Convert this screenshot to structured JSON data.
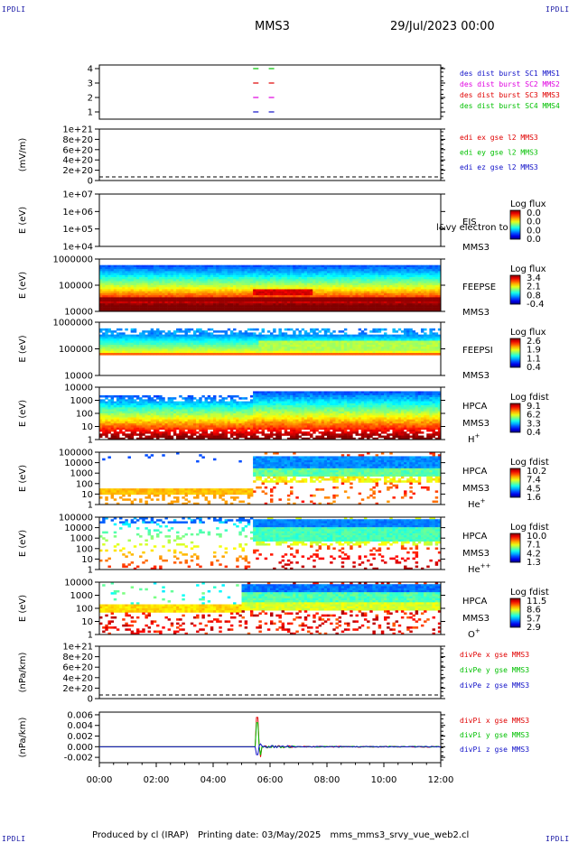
{
  "header": {
    "corner_label": "IPDLI",
    "mission": "MMS3",
    "date": "29/Jul/2023 00:00"
  },
  "footer": {
    "produced_by": "Produced by cl (IRAP)",
    "printing_date": "Printing date: 03/May/2025",
    "filename": "mms_mms3_srvy_vue_web2.cl"
  },
  "colors": {
    "blue": "#1010c8",
    "red": "#e00000",
    "green": "#00c000",
    "magenta": "#e000e0"
  },
  "chart_data": [
    {
      "id": "burst",
      "type": "line",
      "yticks": [
        "4",
        "3",
        "2",
        "1"
      ],
      "ylabel": "",
      "legend": [
        {
          "text": "des dist burst SC1 MMS1",
          "color": "#1010c8"
        },
        {
          "text": "des dist burst SC2 MMS2",
          "color": "#e000e0"
        },
        {
          "text": "des dist burst SC3 MMS3",
          "color": "#e00000"
        },
        {
          "text": "des dist burst SC4 MMS4",
          "color": "#00c000"
        }
      ],
      "bursts": [
        {
          "sc": 4,
          "times": [
            5.5,
            6.05
          ],
          "color": "#00c000"
        },
        {
          "sc": 3,
          "times": [
            5.5,
            6.05
          ],
          "color": "#e00000"
        },
        {
          "sc": 2,
          "times": [
            5.5,
            6.05
          ],
          "color": "#e000e0"
        },
        {
          "sc": 1,
          "times": [
            5.5,
            6.05
          ],
          "color": "#1010c8"
        }
      ]
    },
    {
      "id": "edi",
      "type": "line",
      "yticks": [
        "1e+21",
        "8e+20",
        "6e+20",
        "4e+20",
        "2e+20",
        "0"
      ],
      "ylabel": "(mV/m)",
      "legend": [
        {
          "text": "edi ex gse l2 MMS3",
          "color": "#e00000"
        },
        {
          "text": "edi ey gse l2 MMS3",
          "color": "#00c000"
        },
        {
          "text": "edi ez gse l2 MMS3",
          "color": "#1010c8"
        }
      ]
    },
    {
      "id": "eis",
      "type": "heatmap",
      "yticks": [
        "1e+07",
        "1e+06",
        "1e+05",
        "1e+04"
      ],
      "ylabel": "E (eV)",
      "instrument": [
        "EIS",
        "MMS3"
      ],
      "overlay_text": "l&vy electron to",
      "cbar_title": "Log flux",
      "cbar_ticks": [
        "0.0",
        "0.0",
        "0.0",
        "0.0"
      ]
    },
    {
      "id": "feepse",
      "type": "heatmap",
      "yticks": [
        "1000000",
        "100000",
        "10000"
      ],
      "ylabel": "E (eV)",
      "instrument": [
        "FEEPSE",
        "MMS3"
      ],
      "cbar_title": "Log flux",
      "cbar_ticks": [
        "3.4",
        "2.1",
        "0.8",
        "-0.4"
      ]
    },
    {
      "id": "feepsi",
      "type": "heatmap",
      "yticks": [
        "1000000",
        "100000",
        "10000"
      ],
      "ylabel": "E (eV)",
      "instrument": [
        "FEEPSI",
        "MMS3"
      ],
      "cbar_title": "Log flux",
      "cbar_ticks": [
        "2.6",
        "1.9",
        "1.1",
        "0.4"
      ]
    },
    {
      "id": "hpca_h",
      "type": "heatmap",
      "yticks": [
        "10000",
        "1000",
        "100",
        "10",
        "1"
      ],
      "ylabel": "E (eV)",
      "instrument": [
        "HPCA",
        "MMS3"
      ],
      "species": "H",
      "species_sup": "+",
      "cbar_title": "Log fdist",
      "cbar_ticks": [
        "9.1",
        "6.2",
        "3.3",
        "0.4"
      ]
    },
    {
      "id": "hpca_he",
      "type": "heatmap",
      "yticks": [
        "100000",
        "10000",
        "1000",
        "100",
        "10",
        "1"
      ],
      "ylabel": "E (eV)",
      "instrument": [
        "HPCA",
        "MMS3"
      ],
      "species": "He",
      "species_sup": "+",
      "cbar_title": "Log fdist",
      "cbar_ticks": [
        "10.2",
        "7.4",
        "4.5",
        "1.6"
      ]
    },
    {
      "id": "hpca_hepp",
      "type": "heatmap",
      "yticks": [
        "100000",
        "10000",
        "1000",
        "100",
        "10",
        "1"
      ],
      "ylabel": "E (eV)",
      "instrument": [
        "HPCA",
        "MMS3"
      ],
      "species": "He",
      "species_sup": "++",
      "cbar_title": "Log fdist",
      "cbar_ticks": [
        "10.0",
        "7.1",
        "4.2",
        "1.3"
      ]
    },
    {
      "id": "hpca_o",
      "type": "heatmap",
      "yticks": [
        "10000",
        "1000",
        "100",
        "10",
        "1"
      ],
      "ylabel": "E (eV)",
      "instrument": [
        "HPCA",
        "MMS3"
      ],
      "species": "O",
      "species_sup": "+",
      "cbar_title": "Log fdist",
      "cbar_ticks": [
        "11.5",
        "8.6",
        "5.7",
        "2.9"
      ]
    },
    {
      "id": "divpe",
      "type": "line",
      "yticks": [
        "1e+21",
        "8e+20",
        "6e+20",
        "4e+20",
        "2e+20",
        "0"
      ],
      "ylabel": "(nPa/km)",
      "legend": [
        {
          "text": "divPe x gse MMS3",
          "color": "#e00000"
        },
        {
          "text": "divPe y gse MMS3",
          "color": "#00c000"
        },
        {
          "text": "divPe z gse MMS3",
          "color": "#1010c8"
        }
      ]
    },
    {
      "id": "divpi",
      "type": "line",
      "yticks": [
        "0.006",
        "0.004",
        "0.002",
        "0.000",
        "-0.002"
      ],
      "ylabel": "(nPa/km)",
      "ylim": [
        -0.003,
        0.0065
      ],
      "legend": [
        {
          "text": "divPi x gse MMS3",
          "color": "#e00000"
        },
        {
          "text": "divPi y gse MMS3",
          "color": "#00c000"
        },
        {
          "text": "divPi z gse MMS3",
          "color": "#1010c8"
        }
      ],
      "spike": {
        "time": 5.55,
        "peaks": [
          0.0055,
          0.0045,
          -0.0015
        ]
      }
    }
  ],
  "xaxis": {
    "range": [
      0,
      12
    ],
    "ticks": [
      "00:00",
      "02:00",
      "04:00",
      "06:00",
      "08:00",
      "10:00",
      "12:00"
    ]
  }
}
